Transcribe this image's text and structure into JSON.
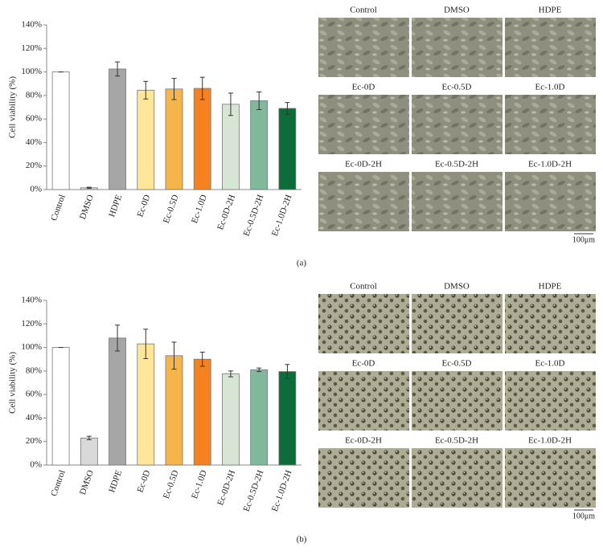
{
  "chart_data": [
    {
      "type": "bar",
      "ylabel": "Cell viability (%)",
      "categories": [
        "Control",
        "DMSO",
        "HDPE",
        "Ec-0D",
        "Ec-0.5D",
        "Ec-1.0D",
        "Ec-0D-2H",
        "Ec-0.5D-2H",
        "Ec-1.0D-2H"
      ],
      "values": [
        100,
        1.5,
        102.5,
        84.5,
        85.5,
        86,
        72.5,
        75.5,
        69
      ],
      "errors": [
        0,
        0.5,
        6,
        7.5,
        9,
        9.5,
        9.5,
        7.5,
        5
      ],
      "colors": [
        "#ffffff",
        "#d9d9d9",
        "#a6a6a6",
        "#ffe699",
        "#f6b54b",
        "#f58220",
        "#d6e6d3",
        "#7fb89a",
        "#0e6b3a"
      ],
      "ylim": [
        0,
        140
      ],
      "yticks": [
        {
          "value": 0,
          "label": "0%"
        },
        {
          "value": 20,
          "label": "20%"
        },
        {
          "value": 40,
          "label": "40%"
        },
        {
          "value": 60,
          "label": "60%"
        },
        {
          "value": 80,
          "label": "80%"
        },
        {
          "value": 100,
          "label": "100%"
        },
        {
          "value": 120,
          "label": "120%"
        },
        {
          "value": 140,
          "label": "140%"
        }
      ],
      "grid": false
    },
    {
      "type": "bar",
      "ylabel": "Cell viability (%)",
      "categories": [
        "Control",
        "DMSO",
        "HDPE",
        "Ec-0D",
        "Ec-0.5D",
        "Ec-1.0D",
        "Ec-0D-2H",
        "Ec-0.5D-2H",
        "Ec-1.0D-2H"
      ],
      "values": [
        100,
        23,
        108,
        103,
        93,
        90,
        77.5,
        81,
        79.5
      ],
      "errors": [
        0,
        1.5,
        11,
        12.5,
        11.5,
        6,
        2.5,
        1.5,
        6
      ],
      "colors": [
        "#ffffff",
        "#d9d9d9",
        "#a6a6a6",
        "#ffe699",
        "#f6b54b",
        "#f58220",
        "#d6e6d3",
        "#7fb89a",
        "#0e6b3a"
      ],
      "ylim": [
        0,
        140
      ],
      "yticks": [
        {
          "value": 0,
          "label": "0%"
        },
        {
          "value": 20,
          "label": "20%"
        },
        {
          "value": 40,
          "label": "40%"
        },
        {
          "value": 60,
          "label": "60%"
        },
        {
          "value": 80,
          "label": "80%"
        },
        {
          "value": 100,
          "label": "100%"
        },
        {
          "value": 120,
          "label": "120%"
        },
        {
          "value": 140,
          "label": "140%"
        }
      ],
      "grid": false
    }
  ],
  "panels": [
    {
      "label": "(a)",
      "micrographs": [
        "Control",
        "DMSO",
        "HDPE",
        "Ec-0D",
        "Ec-0.5D",
        "Ec-1.0D",
        "Ec-0D-2H",
        "Ec-0.5D-2H",
        "Ec-1.0D-2H"
      ],
      "scale_bar": "100μm"
    },
    {
      "label": "(b)",
      "micrographs": [
        "Control",
        "DMSO",
        "HDPE",
        "Ec-0D",
        "Ec-0.5D",
        "Ec-1.0D",
        "Ec-0D-2H",
        "Ec-0.5D-2H",
        "Ec-1.0D-2H"
      ],
      "scale_bar": "100μm"
    }
  ]
}
